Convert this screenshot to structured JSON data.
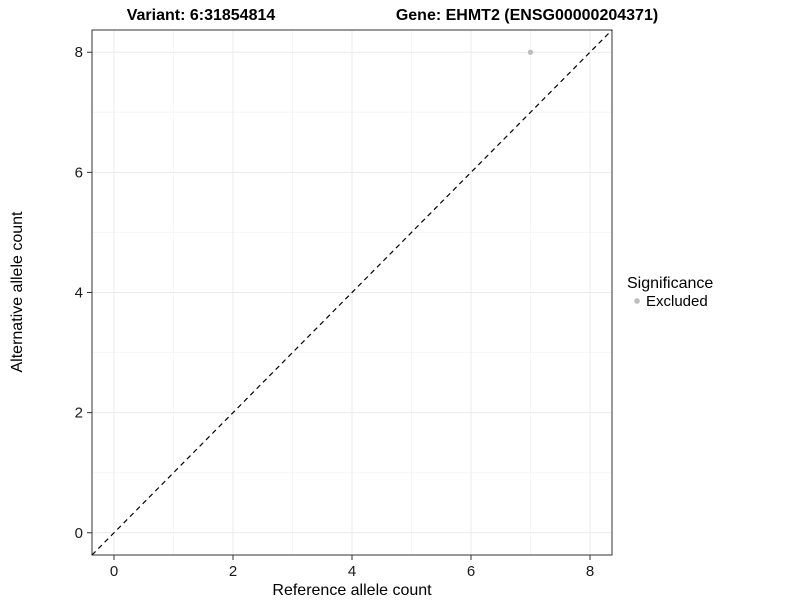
{
  "chart_data": {
    "type": "scatter",
    "title_left": "Variant: 6:31854814",
    "title_right": "Gene: EHMT2 (ENSG00000204371)",
    "xlabel": "Reference allele count",
    "ylabel": "Alternative allele count",
    "xlim": [
      -0.37,
      8.37
    ],
    "ylim": [
      -0.37,
      8.37
    ],
    "xticks": [
      0,
      2,
      4,
      6,
      8
    ],
    "yticks": [
      0,
      2,
      4,
      6,
      8
    ],
    "minor_xticks": [
      1,
      3,
      5,
      7
    ],
    "minor_yticks": [
      1,
      3,
      5,
      7
    ],
    "grid": true,
    "series": [
      {
        "name": "Excluded",
        "color": "#bdbdbd",
        "marker_radius": 2.6,
        "points": [
          {
            "x": 7,
            "y": 8
          }
        ]
      }
    ],
    "identity_line": {
      "slope": 1,
      "intercept": 0,
      "style": "dashed",
      "color": "#000000"
    },
    "legend": {
      "title": "Significance",
      "position": "right",
      "entries": [
        {
          "label": "Excluded",
          "color": "#bdbdbd"
        }
      ]
    },
    "colors": {
      "background": "#ffffff",
      "panel_background": "#ffffff",
      "panel_border": "#333333",
      "grid_major": "#ebebeb",
      "grid_minor": "#f6f6f6",
      "tick": "#333333",
      "text": "#000000"
    }
  }
}
